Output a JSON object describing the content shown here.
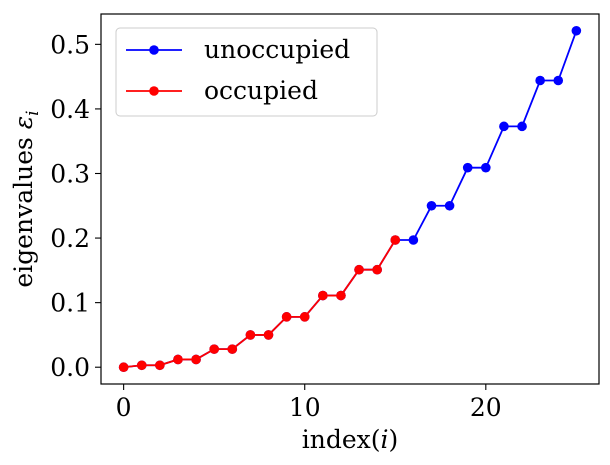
{
  "chart_data": {
    "type": "line",
    "xlabel": "index(",
    "xlabel_var": "i",
    "xlabel_close": ")",
    "ylabel": "eigenvalues ",
    "ylabel_var": "ε",
    "ylabel_sub": "i",
    "xlim": [
      -1.25,
      26.25
    ],
    "ylim": [
      -0.026,
      0.547
    ],
    "xticks": [
      0,
      10,
      20
    ],
    "xtick_labels": [
      "0",
      "10",
      "20"
    ],
    "yticks": [
      0.0,
      0.1,
      0.2,
      0.3,
      0.4,
      0.5
    ],
    "ytick_labels": [
      "0.0",
      "0.1",
      "0.2",
      "0.3",
      "0.4",
      "0.5"
    ],
    "grid": false,
    "legend_position": "top-left",
    "series": [
      {
        "name": "unoccupied",
        "color": "#0000ff",
        "x": [
          0,
          1,
          2,
          3,
          4,
          5,
          6,
          7,
          8,
          9,
          10,
          11,
          12,
          13,
          14,
          15,
          16,
          17,
          18,
          19,
          20,
          21,
          22,
          23,
          24,
          25
        ],
        "y": [
          0.0,
          0.003,
          0.003,
          0.012,
          0.012,
          0.028,
          0.028,
          0.05,
          0.05,
          0.078,
          0.078,
          0.111,
          0.111,
          0.151,
          0.151,
          0.197,
          0.197,
          0.25,
          0.25,
          0.309,
          0.309,
          0.373,
          0.373,
          0.444,
          0.444,
          0.521
        ]
      },
      {
        "name": "occupied",
        "color": "#ff0000",
        "x": [
          0,
          1,
          2,
          3,
          4,
          5,
          6,
          7,
          8,
          9,
          10,
          11,
          12,
          13,
          14,
          15
        ],
        "y": [
          0.0,
          0.003,
          0.003,
          0.012,
          0.012,
          0.028,
          0.028,
          0.05,
          0.05,
          0.078,
          0.078,
          0.111,
          0.111,
          0.151,
          0.151,
          0.197
        ]
      }
    ]
  }
}
